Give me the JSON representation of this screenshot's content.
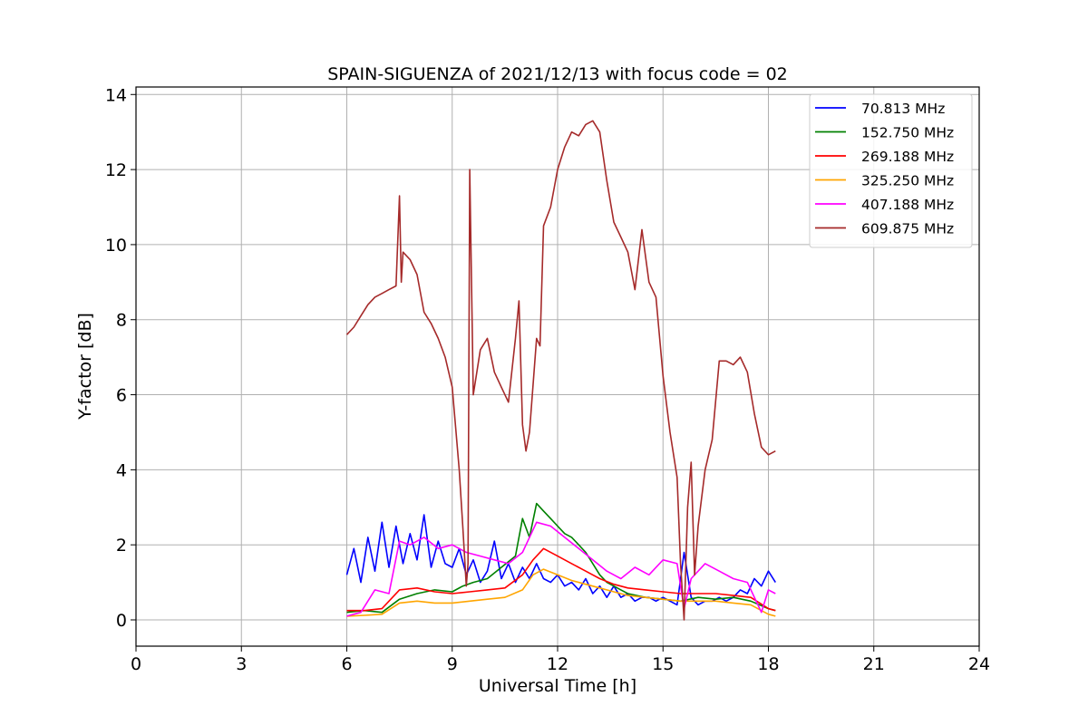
{
  "chart_data": {
    "type": "line",
    "title": "SPAIN-SIGUENZA of 2021/12/13 with focus code = 02",
    "xlabel": "Universal Time [h]",
    "ylabel": "Y-factor [dB]",
    "xlim": [
      0,
      24
    ],
    "ylim": [
      -0.7,
      14.2
    ],
    "xticks": [
      0,
      3,
      6,
      9,
      12,
      15,
      18,
      21,
      24
    ],
    "yticks": [
      0,
      2,
      4,
      6,
      8,
      10,
      12,
      14
    ],
    "grid": true,
    "legend_position": "top-right",
    "series": [
      {
        "name": "70.813 MHz",
        "color": "#0000ff",
        "x": [
          6.0,
          6.2,
          6.4,
          6.6,
          6.8,
          7.0,
          7.2,
          7.4,
          7.6,
          7.8,
          8.0,
          8.2,
          8.4,
          8.6,
          8.8,
          9.0,
          9.2,
          9.4,
          9.6,
          9.8,
          10.0,
          10.2,
          10.4,
          10.6,
          10.8,
          11.0,
          11.2,
          11.4,
          11.6,
          11.8,
          12.0,
          12.2,
          12.4,
          12.6,
          12.8,
          13.0,
          13.2,
          13.4,
          13.6,
          13.8,
          14.0,
          14.2,
          14.4,
          14.6,
          14.8,
          15.0,
          15.2,
          15.4,
          15.6,
          15.8,
          16.0,
          16.2,
          16.4,
          16.6,
          16.8,
          17.0,
          17.2,
          17.4,
          17.6,
          17.8,
          18.0,
          18.2
        ],
        "y": [
          1.2,
          1.9,
          1.0,
          2.2,
          1.3,
          2.6,
          1.4,
          2.5,
          1.5,
          2.3,
          1.6,
          2.8,
          1.4,
          2.1,
          1.5,
          1.4,
          1.9,
          1.2,
          1.6,
          1.0,
          1.3,
          2.1,
          1.1,
          1.5,
          1.0,
          1.4,
          1.1,
          1.5,
          1.1,
          1.0,
          1.2,
          0.9,
          1.0,
          0.8,
          1.1,
          0.7,
          0.9,
          0.6,
          0.9,
          0.6,
          0.7,
          0.5,
          0.6,
          0.6,
          0.5,
          0.6,
          0.5,
          0.4,
          1.8,
          0.6,
          0.4,
          0.5,
          0.5,
          0.6,
          0.5,
          0.6,
          0.8,
          0.7,
          1.1,
          0.9,
          1.3,
          1.0
        ]
      },
      {
        "name": "152.750 MHz",
        "color": "#008000",
        "x": [
          6.0,
          6.5,
          7.0,
          7.5,
          8.0,
          8.5,
          9.0,
          9.3,
          9.6,
          10.0,
          10.4,
          10.8,
          11.0,
          11.2,
          11.4,
          11.6,
          11.8,
          12.0,
          12.2,
          12.4,
          12.6,
          12.8,
          13.0,
          13.2,
          13.4,
          13.6,
          13.8,
          14.0,
          14.5,
          15.0,
          15.5,
          16.0,
          16.5,
          17.0,
          17.5,
          18.0,
          18.2
        ],
        "y": [
          0.2,
          0.25,
          0.2,
          0.55,
          0.7,
          0.8,
          0.75,
          0.9,
          1.0,
          1.1,
          1.4,
          1.7,
          2.7,
          2.2,
          3.1,
          2.9,
          2.7,
          2.5,
          2.3,
          2.2,
          2.0,
          1.8,
          1.5,
          1.2,
          1.0,
          0.9,
          0.8,
          0.7,
          0.6,
          0.55,
          0.5,
          0.6,
          0.55,
          0.6,
          0.5,
          0.3,
          0.25
        ]
      },
      {
        "name": "269.188 MHz",
        "color": "#ff0000",
        "x": [
          6.0,
          6.5,
          7.0,
          7.5,
          8.0,
          8.5,
          9.0,
          9.5,
          10.0,
          10.5,
          11.0,
          11.3,
          11.6,
          12.0,
          12.4,
          12.8,
          13.2,
          13.6,
          14.0,
          14.5,
          15.0,
          15.5,
          16.0,
          16.5,
          17.0,
          17.5,
          18.0,
          18.2
        ],
        "y": [
          0.25,
          0.25,
          0.3,
          0.8,
          0.85,
          0.75,
          0.7,
          0.75,
          0.8,
          0.85,
          1.2,
          1.6,
          1.9,
          1.7,
          1.5,
          1.3,
          1.1,
          0.95,
          0.85,
          0.8,
          0.75,
          0.7,
          0.7,
          0.7,
          0.65,
          0.6,
          0.3,
          0.25
        ]
      },
      {
        "name": "325.250 MHz",
        "color": "#ffa500",
        "x": [
          6.0,
          6.5,
          7.0,
          7.5,
          8.0,
          8.5,
          9.0,
          9.5,
          10.0,
          10.5,
          11.0,
          11.3,
          11.6,
          12.0,
          12.4,
          12.8,
          13.2,
          13.6,
          14.0,
          14.5,
          15.0,
          15.5,
          16.0,
          16.5,
          17.0,
          17.5,
          18.0,
          18.2
        ],
        "y": [
          0.1,
          0.12,
          0.15,
          0.45,
          0.5,
          0.45,
          0.45,
          0.5,
          0.55,
          0.6,
          0.8,
          1.2,
          1.35,
          1.2,
          1.05,
          0.95,
          0.85,
          0.75,
          0.65,
          0.6,
          0.55,
          0.5,
          0.5,
          0.5,
          0.45,
          0.4,
          0.15,
          0.1
        ]
      },
      {
        "name": "407.188 MHz",
        "color": "#ff00ff",
        "x": [
          6.0,
          6.4,
          6.8,
          7.2,
          7.5,
          7.8,
          8.2,
          8.6,
          9.0,
          9.4,
          9.8,
          10.2,
          10.6,
          11.0,
          11.4,
          11.8,
          12.2,
          12.6,
          13.0,
          13.4,
          13.8,
          14.2,
          14.6,
          15.0,
          15.4,
          15.6,
          15.8,
          16.2,
          16.6,
          17.0,
          17.4,
          17.8,
          18.0,
          18.2
        ],
        "y": [
          0.1,
          0.2,
          0.8,
          0.7,
          2.1,
          2.0,
          2.2,
          1.9,
          2.0,
          1.8,
          1.7,
          1.6,
          1.5,
          1.8,
          2.6,
          2.5,
          2.2,
          1.9,
          1.6,
          1.3,
          1.1,
          1.4,
          1.2,
          1.6,
          1.5,
          0.3,
          1.1,
          1.5,
          1.3,
          1.1,
          1.0,
          0.2,
          0.8,
          0.7
        ]
      },
      {
        "name": "609.875 MHz",
        "color": "#a52a2a",
        "x": [
          6.0,
          6.2,
          6.4,
          6.6,
          6.8,
          7.0,
          7.2,
          7.4,
          7.5,
          7.55,
          7.6,
          7.8,
          8.0,
          8.2,
          8.4,
          8.6,
          8.8,
          9.0,
          9.2,
          9.3,
          9.4,
          9.45,
          9.5,
          9.6,
          9.8,
          10.0,
          10.2,
          10.4,
          10.6,
          10.8,
          10.9,
          11.0,
          11.1,
          11.2,
          11.4,
          11.5,
          11.6,
          11.8,
          12.0,
          12.2,
          12.4,
          12.6,
          12.8,
          13.0,
          13.2,
          13.4,
          13.6,
          13.8,
          14.0,
          14.2,
          14.4,
          14.6,
          14.8,
          15.0,
          15.2,
          15.4,
          15.5,
          15.6,
          15.7,
          15.8,
          15.9,
          16.0,
          16.2,
          16.4,
          16.6,
          16.8,
          17.0,
          17.2,
          17.4,
          17.6,
          17.8,
          18.0,
          18.2
        ],
        "y": [
          7.6,
          7.8,
          8.1,
          8.4,
          8.6,
          8.7,
          8.8,
          8.9,
          11.3,
          9.0,
          9.8,
          9.6,
          9.2,
          8.2,
          7.9,
          7.5,
          7.0,
          6.2,
          4.0,
          2.5,
          0.9,
          1.5,
          12.0,
          6.0,
          7.2,
          7.5,
          6.6,
          6.2,
          5.8,
          7.5,
          8.5,
          5.2,
          4.5,
          5.0,
          7.5,
          7.3,
          10.5,
          11.0,
          12.0,
          12.6,
          13.0,
          12.9,
          13.2,
          13.3,
          13.0,
          11.7,
          10.6,
          10.2,
          9.8,
          8.8,
          10.4,
          9.0,
          8.6,
          6.5,
          5.0,
          3.8,
          1.5,
          0.0,
          3.0,
          4.2,
          1.2,
          2.5,
          4.0,
          4.8,
          6.9,
          6.9,
          6.8,
          7.0,
          6.6,
          5.5,
          4.6,
          4.4,
          4.5
        ]
      }
    ]
  }
}
